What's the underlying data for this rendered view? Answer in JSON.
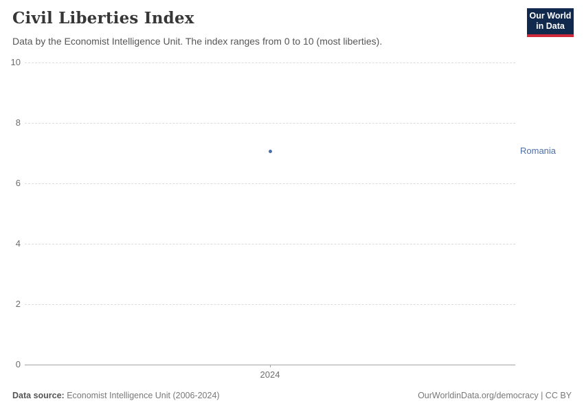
{
  "header": {
    "title": "Civil Liberties Index",
    "subtitle": "Data by the Economist Intelligence Unit. The index ranges from 0 to 10 (most liberties).",
    "logo": {
      "line1": "Our World",
      "line2": "in Data",
      "bg_color": "#12294e",
      "accent_color": "#d0293a"
    }
  },
  "chart_data": {
    "type": "scatter",
    "title": "Civil Liberties Index",
    "subtitle": "Data by the Economist Intelligence Unit. The index ranges from 0 to 10 (most liberties).",
    "series": [
      {
        "name": "Romania",
        "color": "#4c6da8",
        "points": [
          {
            "x": 2024,
            "y": 7.06
          }
        ]
      }
    ],
    "x_ticks": [
      "2024"
    ],
    "y_ticks": [
      0,
      2,
      4,
      6,
      8,
      10
    ],
    "ylim": [
      0,
      10
    ],
    "xlabel": "",
    "ylabel": "",
    "grid": "horizontal-dashed",
    "legend_position": "entity-label-right",
    "grid_color": "#dcdcdc",
    "axis_color": "#a3a3a3",
    "tick_label_color": "#6d6d6d"
  },
  "footer": {
    "source_label": "Data source:",
    "source_text": "Economist Intelligence Unit (2006-2024)",
    "rights_text": "OurWorldinData.org/democracy | CC BY"
  }
}
